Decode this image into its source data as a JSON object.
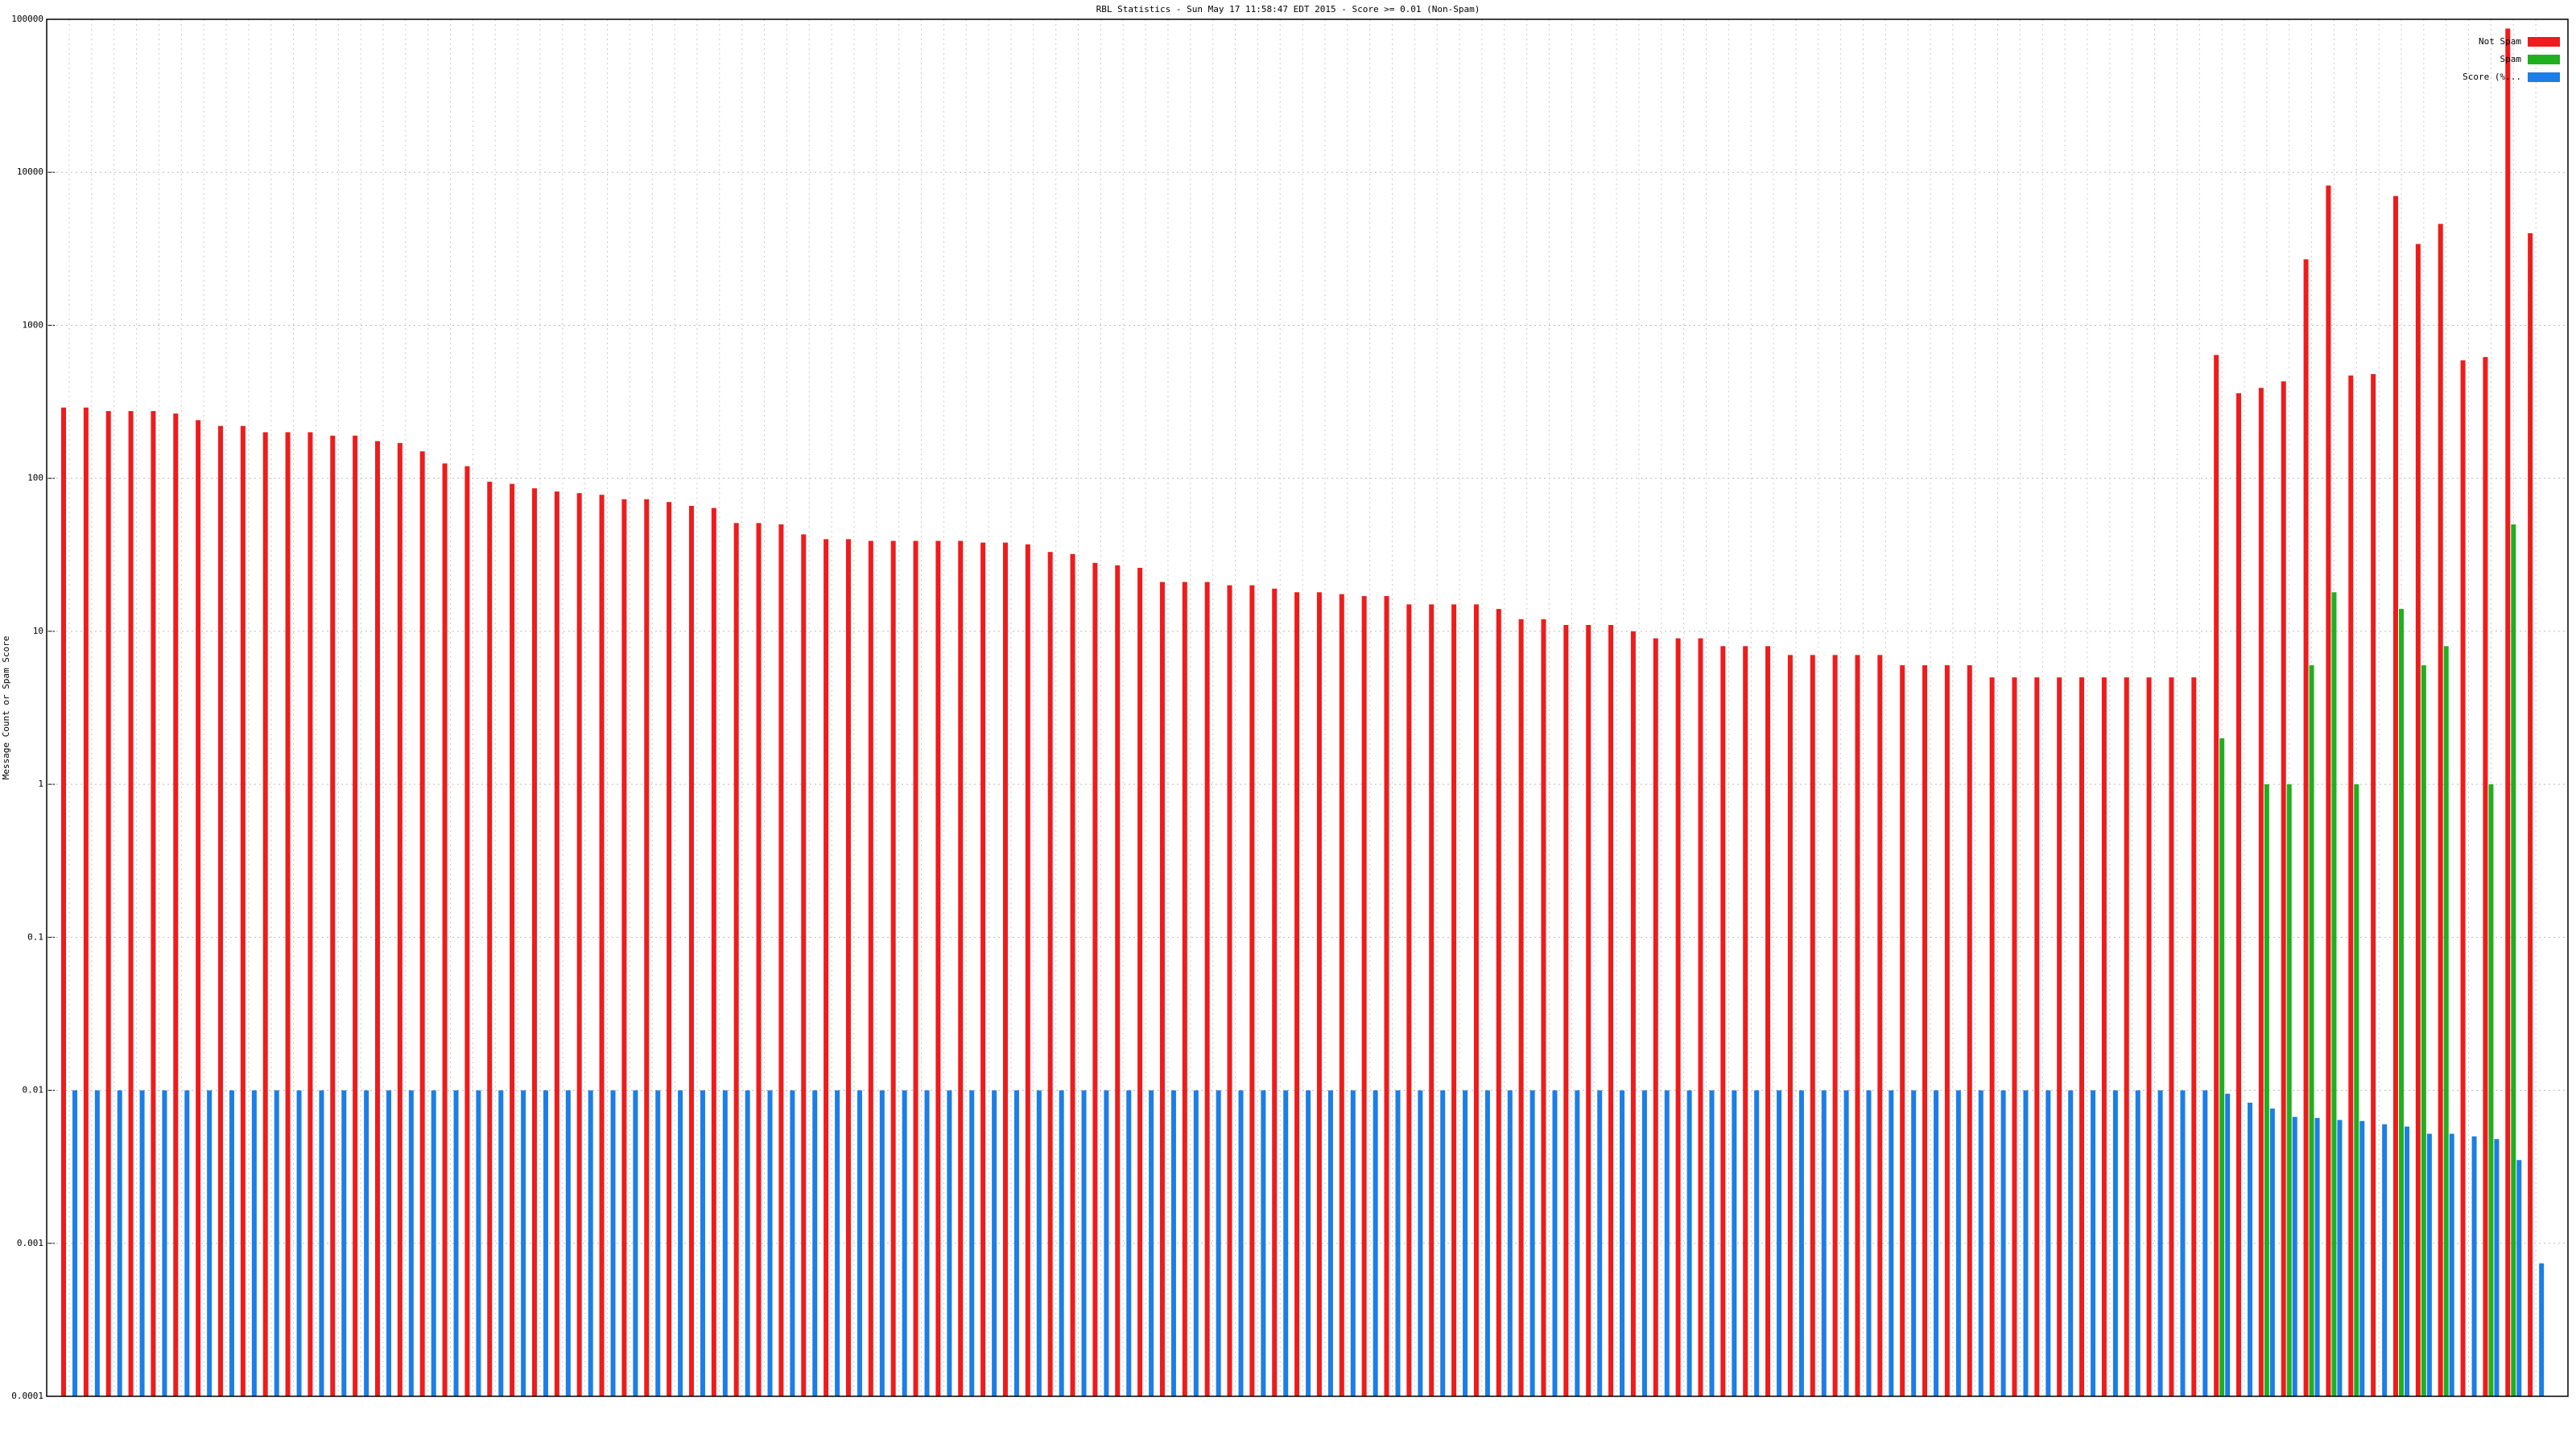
{
  "chart_data": {
    "type": "bar",
    "title": "RBL Statistics - Sun May 17 11:58:47 EDT 2015 - Score >= 0.01 (Non-Spam)",
    "y_label": "Message Count or Spam Score",
    "log_scale": true,
    "grid": true,
    "legend": "top-right",
    "ylim": [
      0.0001,
      100000
    ],
    "yticks": [
      0.0001,
      0.001,
      0.01,
      0.1,
      1,
      10,
      100,
      1000,
      10000,
      100000
    ],
    "categories": [
      null,
      null,
      null,
      null,
      null,
      null,
      null,
      null,
      null,
      null,
      null,
      null,
      null,
      null,
      null,
      null,
      null,
      null,
      null,
      null,
      null,
      null,
      null,
      null,
      null,
      null,
      null,
      null,
      null,
      null,
      null,
      null,
      null,
      null,
      null,
      null,
      null,
      null,
      null,
      null,
      null,
      null,
      null,
      null,
      null,
      null,
      null,
      null,
      null,
      null,
      null,
      null,
      null,
      null,
      null,
      null,
      null,
      null,
      null,
      null,
      null,
      null,
      null,
      null,
      null,
      null,
      null,
      null,
      null,
      null,
      null,
      null,
      null,
      null,
      null,
      null,
      null,
      null,
      null,
      null,
      null,
      null,
      null,
      null,
      null,
      null,
      null,
      null,
      null,
      null,
      null,
      null,
      null,
      null,
      null,
      null,
      null,
      null,
      null,
      null,
      null,
      null,
      null,
      null,
      null,
      null,
      null,
      null,
      null,
      null,
      null
    ],
    "series": [
      {
        "name": "Not Spam",
        "color": "#ee1c1c",
        "values": [
          290,
          290,
          275,
          275,
          275,
          265,
          240,
          220,
          220,
          200,
          200,
          200,
          190,
          190,
          175,
          170,
          150,
          125,
          120,
          95,
          92,
          86,
          82,
          80,
          78,
          73,
          73,
          70,
          66,
          64,
          51,
          51,
          50,
          43,
          40,
          40,
          39,
          39,
          39,
          39,
          39,
          38,
          38,
          37,
          33,
          32,
          28,
          27,
          26,
          21,
          21,
          21,
          20,
          20,
          19,
          18,
          18,
          17.5,
          17,
          17,
          15,
          15,
          15,
          15,
          14,
          12,
          12,
          11,
          11,
          11,
          10,
          9,
          9,
          9,
          8,
          8,
          8,
          7,
          7,
          7,
          7,
          7,
          6,
          6,
          6,
          6,
          5,
          5,
          5,
          5,
          5,
          5,
          5,
          5,
          5,
          5,
          640,
          360,
          390,
          430,
          2700,
          8200,
          470,
          480,
          7000,
          3400,
          4600,
          590,
          620,
          87000,
          4000
        ]
      },
      {
        "name": "Spam",
        "color": "#1fb01f",
        "values": [
          null,
          null,
          null,
          null,
          null,
          null,
          null,
          null,
          null,
          null,
          null,
          null,
          null,
          null,
          null,
          null,
          null,
          null,
          null,
          null,
          null,
          null,
          null,
          null,
          null,
          null,
          null,
          null,
          null,
          null,
          null,
          null,
          null,
          null,
          null,
          null,
          null,
          null,
          null,
          null,
          null,
          null,
          null,
          null,
          null,
          null,
          null,
          null,
          null,
          null,
          null,
          null,
          null,
          null,
          null,
          null,
          null,
          null,
          null,
          null,
          null,
          null,
          null,
          null,
          null,
          null,
          null,
          null,
          null,
          null,
          null,
          null,
          null,
          null,
          null,
          null,
          null,
          null,
          null,
          null,
          null,
          null,
          null,
          null,
          null,
          null,
          null,
          null,
          null,
          null,
          null,
          null,
          null,
          null,
          null,
          null,
          2,
          null,
          1,
          1,
          6,
          18,
          1,
          null,
          14,
          6,
          8,
          null,
          1,
          50,
          null
        ]
      },
      {
        "name": "Score (%...",
        "color": "#1c7ee6",
        "values": [
          0.01,
          0.01,
          0.01,
          0.01,
          0.01,
          0.01,
          0.01,
          0.01,
          0.01,
          0.01,
          0.01,
          0.01,
          0.01,
          0.01,
          0.01,
          0.01,
          0.01,
          0.01,
          0.01,
          0.01,
          0.01,
          0.01,
          0.01,
          0.01,
          0.01,
          0.01,
          0.01,
          0.01,
          0.01,
          0.01,
          0.01,
          0.01,
          0.01,
          0.01,
          0.01,
          0.01,
          0.01,
          0.01,
          0.01,
          0.01,
          0.01,
          0.01,
          0.01,
          0.01,
          0.01,
          0.01,
          0.01,
          0.01,
          0.01,
          0.01,
          0.01,
          0.01,
          0.01,
          0.01,
          0.01,
          0.01,
          0.01,
          0.01,
          0.01,
          0.01,
          0.01,
          0.01,
          0.01,
          0.01,
          0.01,
          0.01,
          0.01,
          0.01,
          0.01,
          0.01,
          0.01,
          0.01,
          0.01,
          0.01,
          0.01,
          0.01,
          0.01,
          0.01,
          0.01,
          0.01,
          0.01,
          0.01,
          0.01,
          0.01,
          0.01,
          0.01,
          0.01,
          0.01,
          0.01,
          0.01,
          0.01,
          0.01,
          0.01,
          0.01,
          0.01,
          0.01,
          0.0095,
          0.0083,
          0.0076,
          0.0067,
          0.0066,
          0.0064,
          0.0063,
          0.006,
          0.0058,
          0.0052,
          0.0052,
          0.005,
          0.0048,
          0.0035,
          0.00074
        ]
      }
    ]
  }
}
